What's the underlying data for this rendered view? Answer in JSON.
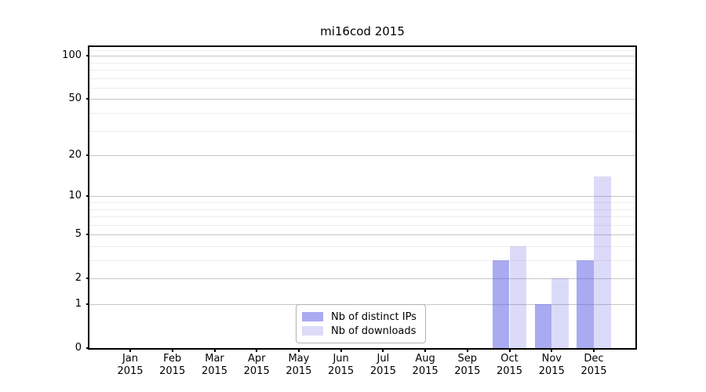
{
  "chart_data": {
    "type": "bar",
    "title": "mi16cod 2015",
    "year_label": "2015",
    "categories": [
      "Jan 2015",
      "Feb 2015",
      "Mar 2015",
      "Apr 2015",
      "May 2015",
      "Jun 2015",
      "Jul 2015",
      "Aug 2015",
      "Sep 2015",
      "Oct 2015",
      "Nov 2015",
      "Dec 2015"
    ],
    "months": [
      "Jan",
      "Feb",
      "Mar",
      "Apr",
      "May",
      "Jun",
      "Jul",
      "Aug",
      "Sep",
      "Oct",
      "Nov",
      "Dec"
    ],
    "series": [
      {
        "name": "Nb of distinct IPs",
        "color": "rgba(92,92,226,0.52)",
        "color_hex": "#a9a9ee",
        "values": [
          0,
          0,
          0,
          0,
          0,
          0,
          0,
          0,
          0,
          3,
          1,
          3
        ]
      },
      {
        "name": "Nb of downloads",
        "color": "rgba(92,92,226,0.22)",
        "color_hex": "#dadaf8",
        "values": [
          0,
          0,
          0,
          0,
          0,
          0,
          0,
          0,
          0,
          4,
          2,
          14
        ]
      }
    ],
    "y_axis": {
      "scale": "log1p",
      "ticks": [
        0,
        1,
        2,
        5,
        10,
        20,
        50,
        100
      ],
      "minor_gridlines": [
        3,
        4,
        6,
        7,
        8,
        9,
        30,
        40,
        60,
        70,
        80,
        90,
        110
      ],
      "ylim": [
        0,
        115
      ]
    },
    "xlabel": "",
    "ylabel": "",
    "grid": {
      "enabled": true,
      "major_color": "#c6c6c6",
      "minor_color": "#ededed"
    },
    "legend": {
      "position": "lower center"
    }
  }
}
